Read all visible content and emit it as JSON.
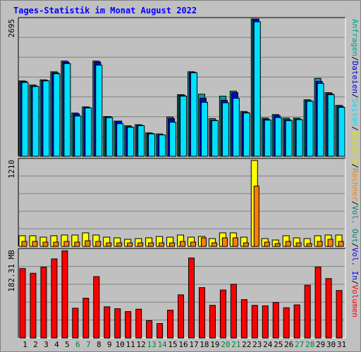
{
  "title": "Tages-Statistik im Monat August 2022",
  "chart_data": [
    {
      "type": "bar",
      "panel": "top",
      "y_axis_label": "2695",
      "ylim": [
        0,
        2695
      ],
      "series": [
        {
          "name": "Anfragen",
          "color": "#00a08a"
        },
        {
          "name": "Dateien",
          "color": "#0000e0"
        },
        {
          "name": "Seiten",
          "color": "#00e0ff"
        }
      ],
      "x": [
        1,
        2,
        3,
        4,
        5,
        6,
        7,
        8,
        9,
        10,
        11,
        12,
        13,
        14,
        15,
        16,
        17,
        18,
        19,
        20,
        21,
        22,
        23,
        24,
        25,
        26,
        27,
        28,
        29,
        30,
        31
      ],
      "anfragen": [
        1480,
        1400,
        1500,
        1660,
        1870,
        850,
        970,
        1870,
        780,
        690,
        600,
        620,
        460,
        440,
        770,
        1210,
        1660,
        1220,
        740,
        1180,
        1280,
        880,
        2695,
        750,
        820,
        750,
        750,
        1110,
        1530,
        1250,
        1000
      ],
      "dateien": [
        1470,
        1380,
        1490,
        1640,
        1850,
        830,
        960,
        1850,
        780,
        690,
        580,
        610,
        450,
        420,
        740,
        1200,
        1650,
        1140,
        710,
        1100,
        1250,
        860,
        2695,
        730,
        800,
        720,
        730,
        1090,
        1470,
        1230,
        980
      ],
      "seiten": [
        1450,
        1370,
        1480,
        1620,
        1820,
        790,
        950,
        1790,
        760,
        640,
        570,
        600,
        440,
        420,
        670,
        1180,
        1640,
        1060,
        700,
        1050,
        1140,
        850,
        2640,
        710,
        760,
        700,
        720,
        1080,
        1430,
        1210,
        960
      ]
    },
    {
      "type": "bar",
      "panel": "middle",
      "y_axis_label": "1210",
      "ylim": [
        0,
        1210
      ],
      "series": [
        {
          "name": "Besuche",
          "color": "#ffff00"
        },
        {
          "name": "Rechner",
          "color": "#ff8000"
        }
      ],
      "x": [
        1,
        2,
        3,
        4,
        5,
        6,
        7,
        8,
        9,
        10,
        11,
        12,
        13,
        14,
        15,
        16,
        17,
        18,
        19,
        20,
        21,
        22,
        23,
        24,
        25,
        26,
        27,
        28,
        29,
        30,
        31
      ],
      "besuche": [
        150,
        150,
        130,
        150,
        160,
        160,
        190,
        160,
        130,
        120,
        100,
        110,
        120,
        140,
        130,
        160,
        130,
        140,
        110,
        190,
        190,
        130,
        1210,
        110,
        90,
        150,
        120,
        110,
        150,
        160,
        160
      ],
      "rechner": [
        70,
        70,
        60,
        60,
        70,
        60,
        80,
        70,
        50,
        50,
        50,
        50,
        50,
        50,
        50,
        70,
        60,
        120,
        50,
        120,
        120,
        50,
        850,
        60,
        40,
        70,
        50,
        40,
        70,
        100,
        70
      ]
    },
    {
      "type": "bar",
      "panel": "bottom",
      "y_axis_label": "182.31 MB",
      "ylim": [
        0,
        182.31
      ],
      "series": [
        {
          "name": "Volumen",
          "color": "#ff0000"
        },
        {
          "name": "Vol. In",
          "color": "#0000ff"
        },
        {
          "name": "Vol. Out",
          "color": "#008080"
        }
      ],
      "x": [
        1,
        2,
        3,
        4,
        5,
        6,
        7,
        8,
        9,
        10,
        11,
        12,
        13,
        14,
        15,
        16,
        17,
        18,
        19,
        20,
        21,
        22,
        23,
        24,
        25,
        26,
        27,
        28,
        29,
        30,
        31
      ],
      "volumen": [
        145,
        135,
        148,
        165,
        182,
        62,
        83,
        128,
        65,
        61,
        55,
        60,
        36,
        30,
        58,
        90,
        167,
        105,
        68,
        100,
        112,
        80,
        68,
        67,
        74,
        63,
        69,
        110,
        148,
        124,
        99
      ]
    }
  ],
  "x_tick_labels": [
    "1",
    "2",
    "3",
    "4",
    "5",
    "6",
    "7",
    "8",
    "9",
    "10",
    "11",
    "12",
    "13",
    "14",
    "15",
    "16",
    "17",
    "18",
    "19",
    "20",
    "21",
    "22",
    "23",
    "24",
    "25",
    "26",
    "27",
    "28",
    "29",
    "30",
    "31"
  ],
  "weekend_days": [
    6,
    7,
    13,
    14,
    20,
    21,
    27,
    28
  ],
  "weekday_color": "#000000",
  "weekend_color": "#008040",
  "legend_right": [
    {
      "text": "Anfragen",
      "color": "#00a08a"
    },
    {
      "text": "/",
      "color": "#000000"
    },
    {
      "text": "Dateien",
      "color": "#0000e0"
    },
    {
      "text": "/",
      "color": "#000000"
    },
    {
      "text": "Seiten",
      "color": "#00e0ff"
    },
    {
      "text": "/",
      "color": "#000000"
    },
    {
      "text": "Besuche",
      "color": "#e0e000"
    },
    {
      "text": "/",
      "color": "#000000"
    },
    {
      "text": "Rechner",
      "color": "#ff8000"
    },
    {
      "text": "/",
      "color": "#000000"
    },
    {
      "text": "Vol. Out",
      "color": "#008080"
    },
    {
      "text": "/",
      "color": "#000000"
    },
    {
      "text": "Vol. In",
      "color": "#0000ff"
    },
    {
      "text": "/",
      "color": "#000000"
    },
    {
      "text": "Volumen",
      "color": "#ff0000"
    }
  ]
}
